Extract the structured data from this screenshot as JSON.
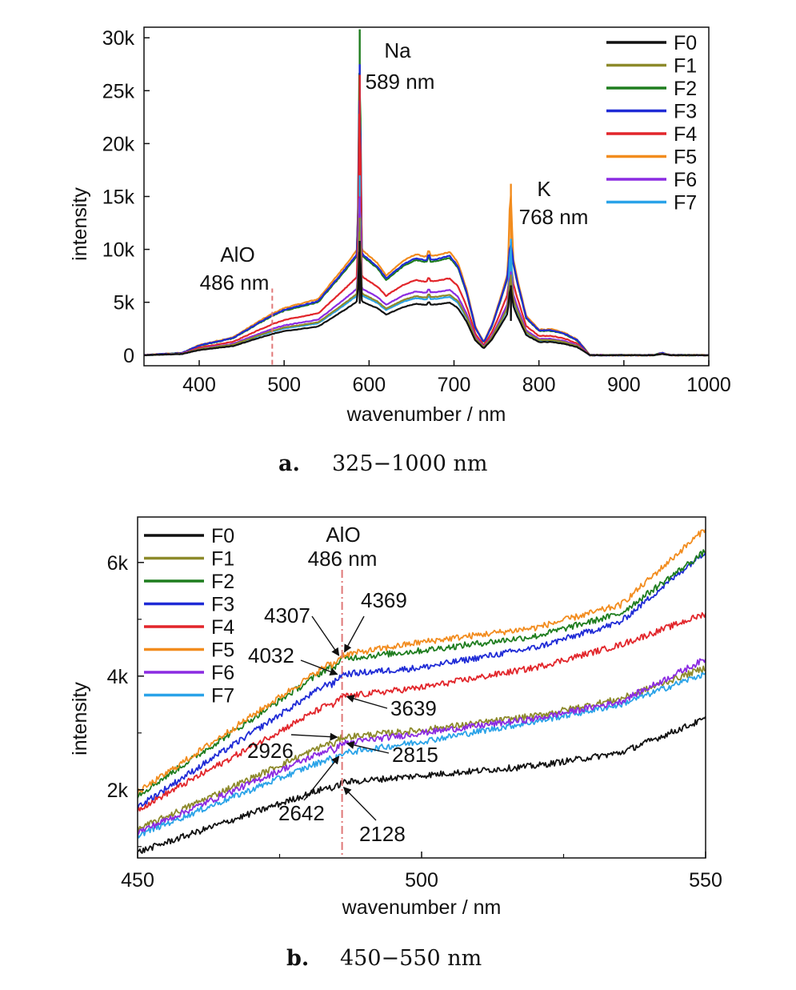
{
  "figure": {
    "caption_a_label": "a.",
    "caption_a_text": "325−1000 nm",
    "caption_b_label": "b.",
    "caption_b_text": "450−550 nm"
  },
  "colors": {
    "F0": "#111111",
    "F1": "#8d8a2b",
    "F2": "#1e7d1e",
    "F3": "#1f2bd6",
    "F4": "#e2262b",
    "F5": "#f28c1e",
    "F6": "#8b2be2",
    "F7": "#2aa3e8",
    "marker": "#e07878"
  },
  "chart_data": [
    {
      "type": "line",
      "xlabel": "wavenumber / nm",
      "ylabel": "intensity",
      "xlim": [
        335,
        1000
      ],
      "ylim": [
        -1000,
        31000
      ],
      "xticks": [
        400,
        500,
        600,
        700,
        800,
        900,
        1000
      ],
      "yticks": [
        0,
        5000,
        10000,
        15000,
        20000,
        25000,
        30000
      ],
      "yticklabels": [
        "0",
        "5k",
        "10k",
        "15k",
        "20k",
        "25k",
        "30k"
      ],
      "legend_position": "top-right",
      "annotations": [
        {
          "line1": "AlO",
          "line2": "486 nm"
        },
        {
          "line1": "Na",
          "line2": "589 nm"
        },
        {
          "line1": "K",
          "line2": "768 nm"
        }
      ],
      "marker_x": 486,
      "shape": {
        "x": [
          335,
          380,
          400,
          440,
          470,
          486,
          500,
          540,
          570,
          585,
          589,
          593,
          610,
          620,
          640,
          655,
          665,
          680,
          695,
          705,
          715,
          725,
          735,
          745,
          755,
          762,
          768,
          774,
          785,
          800,
          815,
          830,
          845,
          860,
          880,
          900,
          935,
          945,
          955,
          1000
        ],
        "y": [
          0,
          0.02,
          0.09,
          0.16,
          0.3,
          0.37,
          0.42,
          0.5,
          0.78,
          0.93,
          1.0,
          0.93,
          0.82,
          0.71,
          0.84,
          0.9,
          0.88,
          0.89,
          0.92,
          0.82,
          0.58,
          0.26,
          0.12,
          0.28,
          0.52,
          0.7,
          0.93,
          0.7,
          0.35,
          0.23,
          0.23,
          0.2,
          0.14,
          0.0,
          0,
          0,
          0,
          0.02,
          0,
          0
        ]
      },
      "series": [
        {
          "name": "F0",
          "scale": 5400,
          "na_peak": 10800,
          "k_peak": 6600
        },
        {
          "name": "F1",
          "scale": 6200,
          "na_peak": 13000,
          "k_peak": 7600
        },
        {
          "name": "F2",
          "scale": 10000,
          "na_peak": 30800,
          "k_peak": 10500
        },
        {
          "name": "F3",
          "scale": 10200,
          "na_peak": 27500,
          "k_peak": 10700
        },
        {
          "name": "F4",
          "scale": 7900,
          "na_peak": 26500,
          "k_peak": 9000
        },
        {
          "name": "F5",
          "scale": 10600,
          "na_peak": 24000,
          "k_peak": 16200
        },
        {
          "name": "F6",
          "scale": 6700,
          "na_peak": 15000,
          "k_peak": 7900
        },
        {
          "name": "F7",
          "scale": 6000,
          "na_peak": 17000,
          "k_peak": 11000
        }
      ]
    },
    {
      "type": "line",
      "xlabel": "wavenumber / nm",
      "ylabel": "intensity",
      "xlim": [
        450,
        550
      ],
      "ylim": [
        800,
        6800
      ],
      "xticks": [
        450,
        500,
        550
      ],
      "yticks": [
        2000,
        4000,
        6000
      ],
      "yticklabels": [
        "2k",
        "4k",
        "6k"
      ],
      "legend_position": "top-left",
      "marker_label_line1": "AlO",
      "marker_label_line2": "486 nm",
      "marker_x": 486,
      "series": [
        {
          "name": "F0",
          "x": [
            450,
            486,
            500,
            520,
            535,
            550
          ],
          "y": [
            900,
            2128,
            2250,
            2420,
            2650,
            3250
          ]
        },
        {
          "name": "F1",
          "x": [
            450,
            486,
            500,
            520,
            535,
            550
          ],
          "y": [
            1300,
            2926,
            3050,
            3300,
            3600,
            4150
          ]
        },
        {
          "name": "F2",
          "x": [
            450,
            486,
            500,
            520,
            535,
            550
          ],
          "y": [
            1900,
            4307,
            4450,
            4700,
            5100,
            6200
          ]
        },
        {
          "name": "F3",
          "x": [
            450,
            486,
            500,
            520,
            535,
            550
          ],
          "y": [
            1700,
            4032,
            4150,
            4500,
            4950,
            6200
          ]
        },
        {
          "name": "F4",
          "x": [
            450,
            486,
            500,
            520,
            535,
            550
          ],
          "y": [
            1650,
            3639,
            3800,
            4150,
            4550,
            5100
          ]
        },
        {
          "name": "F5",
          "x": [
            450,
            486,
            500,
            520,
            535,
            550
          ],
          "y": [
            1950,
            4369,
            4600,
            4850,
            5250,
            6600
          ]
        },
        {
          "name": "F6",
          "x": [
            450,
            486,
            500,
            520,
            535,
            550
          ],
          "y": [
            1250,
            2815,
            3000,
            3250,
            3550,
            4300
          ]
        },
        {
          "name": "F7",
          "x": [
            450,
            486,
            500,
            520,
            535,
            550
          ],
          "y": [
            1200,
            2642,
            2850,
            3200,
            3500,
            4050
          ]
        }
      ],
      "annotations": [
        {
          "text": "4307",
          "series": "F2"
        },
        {
          "text": "4369",
          "series": "F5"
        },
        {
          "text": "4032",
          "series": "F3"
        },
        {
          "text": "3639",
          "series": "F4"
        },
        {
          "text": "2926",
          "series": "F1"
        },
        {
          "text": "2815",
          "series": "F6"
        },
        {
          "text": "2642",
          "series": "F7"
        },
        {
          "text": "2128",
          "series": "F0"
        }
      ]
    }
  ]
}
